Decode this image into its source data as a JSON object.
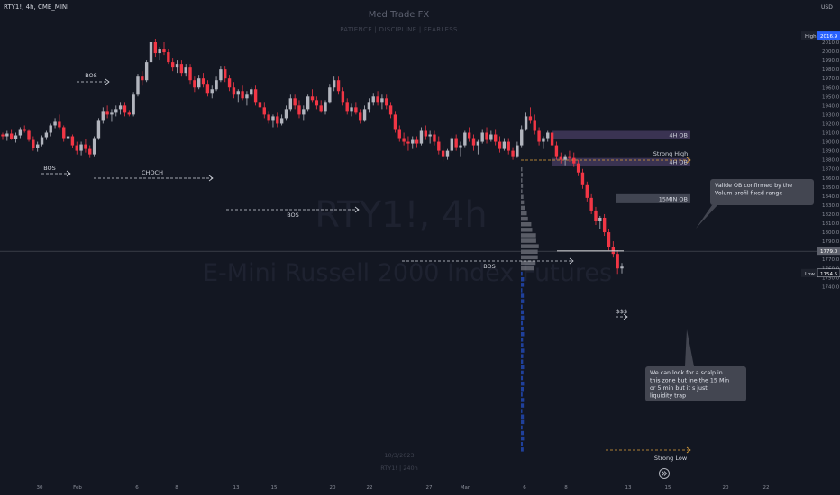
{
  "header": {
    "ticker_line": "RTY1!, 4h, CME_MINI",
    "title": "Med Trade FX",
    "subtitle": "PATIENCE | DISCIPLINE | FEARLESS",
    "currency": "USD"
  },
  "watermark": {
    "symbol": "RTY1!, 4h",
    "name": "E-Mini Russell 2000 Index Futures",
    "date": "10/3/2023",
    "footer": "RTY1! | 240h"
  },
  "chart_data": {
    "type": "candlestick",
    "ylim": [
      1740,
      2020
    ],
    "y_ticks": [
      2010,
      2000,
      1990,
      1980,
      1970,
      1960,
      1950,
      1940,
      1930,
      1920,
      1910,
      1900,
      1890,
      1880,
      1870,
      1860,
      1850,
      1840,
      1830,
      1820,
      1810,
      1800,
      1790,
      1780,
      1770,
      1760,
      1750,
      1740
    ],
    "x_labels": [
      "30",
      "Feb",
      "6",
      "8",
      "13",
      "15",
      "20",
      "22",
      "27",
      "Mar",
      "6",
      "8",
      "13",
      "15",
      "20",
      "22"
    ],
    "price_labels": [
      {
        "tag": "High",
        "value": "2016.9"
      },
      {
        "tag": "",
        "value": "1779.0"
      },
      {
        "tag": "Low",
        "value": "1754.5"
      }
    ],
    "bars": [
      [
        1908,
        1910,
        1902,
        1906
      ],
      [
        1906,
        1912,
        1901,
        1909
      ],
      [
        1909,
        1914,
        1902,
        1903
      ],
      [
        1903,
        1910,
        1899,
        1907
      ],
      [
        1907,
        1916,
        1904,
        1914
      ],
      [
        1914,
        1918,
        1910,
        1912
      ],
      [
        1912,
        1914,
        1900,
        1902
      ],
      [
        1902,
        1906,
        1890,
        1893
      ],
      [
        1893,
        1900,
        1889,
        1897
      ],
      [
        1897,
        1907,
        1895,
        1905
      ],
      [
        1905,
        1912,
        1902,
        1910
      ],
      [
        1910,
        1920,
        1906,
        1918
      ],
      [
        1918,
        1926,
        1915,
        1922
      ],
      [
        1922,
        1930,
        1914,
        1916
      ],
      [
        1916,
        1918,
        1900,
        1904
      ],
      [
        1904,
        1909,
        1896,
        1906
      ],
      [
        1906,
        1908,
        1893,
        1896
      ],
      [
        1896,
        1900,
        1886,
        1890
      ],
      [
        1890,
        1900,
        1885,
        1897
      ],
      [
        1897,
        1903,
        1888,
        1892
      ],
      [
        1892,
        1896,
        1882,
        1886
      ],
      [
        1886,
        1906,
        1884,
        1904
      ],
      [
        1904,
        1926,
        1902,
        1924
      ],
      [
        1924,
        1938,
        1920,
        1934
      ],
      [
        1934,
        1940,
        1926,
        1930
      ],
      [
        1930,
        1936,
        1922,
        1932
      ],
      [
        1932,
        1940,
        1928,
        1936
      ],
      [
        1936,
        1944,
        1930,
        1940
      ],
      [
        1940,
        1944,
        1928,
        1932
      ],
      [
        1932,
        1935,
        1928,
        1930
      ],
      [
        1930,
        1955,
        1928,
        1952
      ],
      [
        1952,
        1975,
        1950,
        1972
      ],
      [
        1972,
        1978,
        1962,
        1968
      ],
      [
        1968,
        1990,
        1966,
        1988
      ],
      [
        1988,
        2016,
        1985,
        2010
      ],
      [
        2010,
        2014,
        1994,
        1998
      ],
      [
        1998,
        2005,
        1990,
        2002
      ],
      [
        2002,
        2010,
        1996,
        1999
      ],
      [
        1999,
        2002,
        1986,
        1988
      ],
      [
        1988,
        1992,
        1978,
        1982
      ],
      [
        1982,
        1990,
        1976,
        1986
      ],
      [
        1986,
        1990,
        1972,
        1976
      ],
      [
        1976,
        1986,
        1972,
        1982
      ],
      [
        1982,
        1986,
        1964,
        1968
      ],
      [
        1968,
        1972,
        1955,
        1960
      ],
      [
        1960,
        1974,
        1958,
        1970
      ],
      [
        1970,
        1976,
        1960,
        1964
      ],
      [
        1964,
        1968,
        1950,
        1954
      ],
      [
        1954,
        1962,
        1948,
        1958
      ],
      [
        1958,
        1972,
        1956,
        1968
      ],
      [
        1968,
        1984,
        1966,
        1980
      ],
      [
        1980,
        1984,
        1966,
        1970
      ],
      [
        1970,
        1974,
        1956,
        1960
      ],
      [
        1960,
        1966,
        1948,
        1952
      ],
      [
        1952,
        1958,
        1944,
        1956
      ],
      [
        1956,
        1962,
        1946,
        1948
      ],
      [
        1948,
        1956,
        1940,
        1952
      ],
      [
        1952,
        1960,
        1950,
        1958
      ],
      [
        1958,
        1962,
        1940,
        1944
      ],
      [
        1944,
        1948,
        1932,
        1938
      ],
      [
        1938,
        1944,
        1926,
        1930
      ],
      [
        1930,
        1934,
        1920,
        1924
      ],
      [
        1924,
        1930,
        1916,
        1928
      ],
      [
        1928,
        1932,
        1916,
        1920
      ],
      [
        1920,
        1930,
        1918,
        1926
      ],
      [
        1926,
        1940,
        1924,
        1936
      ],
      [
        1936,
        1952,
        1934,
        1948
      ],
      [
        1948,
        1952,
        1936,
        1940
      ],
      [
        1940,
        1946,
        1926,
        1930
      ],
      [
        1930,
        1940,
        1924,
        1936
      ],
      [
        1936,
        1952,
        1934,
        1950
      ],
      [
        1950,
        1958,
        1944,
        1946
      ],
      [
        1946,
        1950,
        1936,
        1940
      ],
      [
        1940,
        1946,
        1932,
        1934
      ],
      [
        1934,
        1946,
        1930,
        1944
      ],
      [
        1944,
        1964,
        1942,
        1960
      ],
      [
        1960,
        1972,
        1956,
        1968
      ],
      [
        1968,
        1972,
        1952,
        1956
      ],
      [
        1956,
        1960,
        1940,
        1944
      ],
      [
        1944,
        1948,
        1930,
        1934
      ],
      [
        1934,
        1942,
        1928,
        1938
      ],
      [
        1938,
        1944,
        1930,
        1932
      ],
      [
        1932,
        1936,
        1920,
        1924
      ],
      [
        1924,
        1940,
        1922,
        1936
      ],
      [
        1936,
        1948,
        1932,
        1944
      ],
      [
        1944,
        1954,
        1940,
        1950
      ],
      [
        1950,
        1956,
        1940,
        1944
      ],
      [
        1944,
        1952,
        1936,
        1948
      ],
      [
        1948,
        1952,
        1936,
        1940
      ],
      [
        1940,
        1944,
        1926,
        1930
      ],
      [
        1930,
        1934,
        1910,
        1914
      ],
      [
        1914,
        1918,
        1900,
        1904
      ],
      [
        1904,
        1910,
        1896,
        1900
      ],
      [
        1900,
        1906,
        1890,
        1898
      ],
      [
        1898,
        1906,
        1892,
        1902
      ],
      [
        1902,
        1906,
        1894,
        1898
      ],
      [
        1898,
        1916,
        1896,
        1912
      ],
      [
        1912,
        1918,
        1902,
        1906
      ],
      [
        1906,
        1912,
        1898,
        1908
      ],
      [
        1908,
        1912,
        1896,
        1900
      ],
      [
        1900,
        1906,
        1886,
        1890
      ],
      [
        1890,
        1896,
        1878,
        1884
      ],
      [
        1884,
        1892,
        1880,
        1890
      ],
      [
        1890,
        1906,
        1888,
        1904
      ],
      [
        1904,
        1908,
        1890,
        1894
      ],
      [
        1894,
        1900,
        1884,
        1896
      ],
      [
        1896,
        1912,
        1894,
        1910
      ],
      [
        1910,
        1916,
        1900,
        1904
      ],
      [
        1904,
        1908,
        1890,
        1896
      ],
      [
        1896,
        1902,
        1886,
        1900
      ],
      [
        1900,
        1914,
        1898,
        1910
      ],
      [
        1910,
        1916,
        1898,
        1902
      ],
      [
        1902,
        1912,
        1900,
        1908
      ],
      [
        1908,
        1914,
        1896,
        1900
      ],
      [
        1900,
        1906,
        1888,
        1892
      ],
      [
        1892,
        1904,
        1890,
        1900
      ],
      [
        1900,
        1904,
        1886,
        1890
      ],
      [
        1890,
        1894,
        1880,
        1884
      ],
      [
        1884,
        1900,
        1882,
        1896
      ],
      [
        1896,
        1918,
        1894,
        1914
      ],
      [
        1914,
        1932,
        1912,
        1928
      ],
      [
        1928,
        1938,
        1920,
        1924
      ],
      [
        1924,
        1930,
        1908,
        1912
      ],
      [
        1912,
        1916,
        1896,
        1900
      ],
      [
        1900,
        1906,
        1892,
        1904
      ],
      [
        1904,
        1912,
        1900,
        1910
      ],
      [
        1910,
        1914,
        1892,
        1896
      ],
      [
        1896,
        1900,
        1880,
        1884
      ],
      [
        1884,
        1888,
        1876,
        1880
      ],
      [
        1880,
        1886,
        1874,
        1884
      ],
      [
        1884,
        1890,
        1878,
        1882
      ],
      [
        1882,
        1888,
        1872,
        1876
      ],
      [
        1876,
        1880,
        1862,
        1866
      ],
      [
        1866,
        1870,
        1848,
        1852
      ],
      [
        1852,
        1856,
        1834,
        1838
      ],
      [
        1838,
        1842,
        1820,
        1824
      ],
      [
        1824,
        1828,
        1808,
        1812
      ],
      [
        1812,
        1818,
        1804,
        1816
      ],
      [
        1816,
        1820,
        1796,
        1800
      ],
      [
        1800,
        1804,
        1780,
        1784
      ],
      [
        1784,
        1790,
        1772,
        1776
      ],
      [
        1776,
        1780,
        1754,
        1760
      ],
      [
        1760,
        1766,
        1754.5,
        1762
      ]
    ],
    "annotations": [
      {
        "text": "BOS"
      },
      {
        "text": "BOS"
      },
      {
        "text": "CHOCH"
      },
      {
        "text": "BOS"
      },
      {
        "text": "BOS"
      },
      {
        "text": "Strong High"
      },
      {
        "text": "Strong Low"
      },
      {
        "text": "$$$"
      }
    ],
    "zones": [
      {
        "label": "4H OB",
        "from": 1903,
        "to": 1912
      },
      {
        "label": "4H OB",
        "from": 1873,
        "to": 1882
      },
      {
        "label": "15MIN OB",
        "from": 1832,
        "to": 1842
      }
    ],
    "callouts": [
      {
        "text": "Valide OB confirmed by the Volum profil fixed range"
      },
      {
        "text": "We can look for a scalp in this zone but ine the 15 Min or 5 min but it s just liquidity trap"
      }
    ]
  },
  "colors": {
    "background": "#131722",
    "up": "#b2b5be",
    "down": "#f23645",
    "zone": "#5b4a7a",
    "zone_15m": "#4a4e5a",
    "callout": "#434651",
    "dashed": "#d1d4dc",
    "dashed_orange": "#e0a33b",
    "volume_profile": "#2962ff"
  }
}
